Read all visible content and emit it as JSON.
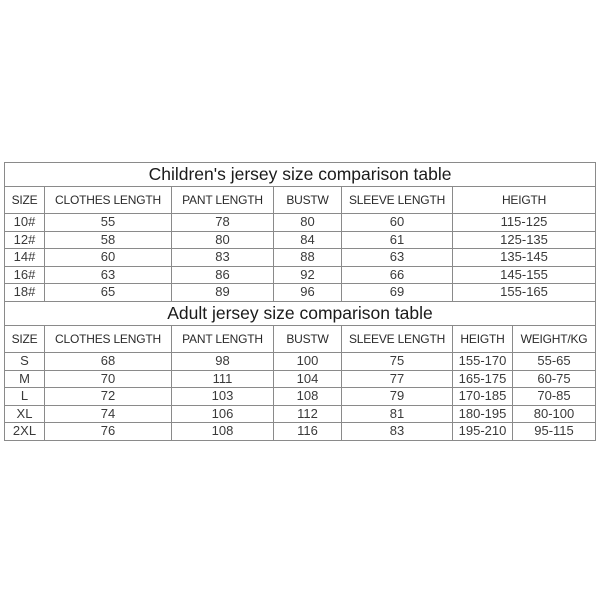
{
  "children_table": {
    "title": "Children's jersey size comparison table",
    "headers": [
      "SIZE",
      "CLOTHES LENGTH",
      "PANT LENGTH",
      "BUSTW",
      "SLEEVE LENGTH",
      "HEIGTH"
    ],
    "rows": [
      [
        "10#",
        "55",
        "78",
        "80",
        "60",
        "115-125"
      ],
      [
        "12#",
        "58",
        "80",
        "84",
        "61",
        "125-135"
      ],
      [
        "14#",
        "60",
        "83",
        "88",
        "63",
        "135-145"
      ],
      [
        "16#",
        "63",
        "86",
        "92",
        "66",
        "145-155"
      ],
      [
        "18#",
        "65",
        "89",
        "96",
        "69",
        "155-165"
      ]
    ]
  },
  "adult_table": {
    "title": "Adult jersey size comparison table",
    "headers": [
      "SIZE",
      "CLOTHES LENGTH",
      "PANT LENGTH",
      "BUSTW",
      "SLEEVE LENGTH",
      "HEIGTH",
      "WEIGHT/KG"
    ],
    "rows": [
      [
        "S",
        "68",
        "98",
        "100",
        "75",
        "155-170",
        "55-65"
      ],
      [
        "M",
        "70",
        "111",
        "104",
        "77",
        "165-175",
        "60-75"
      ],
      [
        "L",
        "72",
        "103",
        "108",
        "79",
        "170-185",
        "70-85"
      ],
      [
        "XL",
        "74",
        "106",
        "112",
        "81",
        "180-195",
        "80-100"
      ],
      [
        "2XL",
        "76",
        "108",
        "116",
        "83",
        "195-210",
        "95-115"
      ]
    ]
  }
}
